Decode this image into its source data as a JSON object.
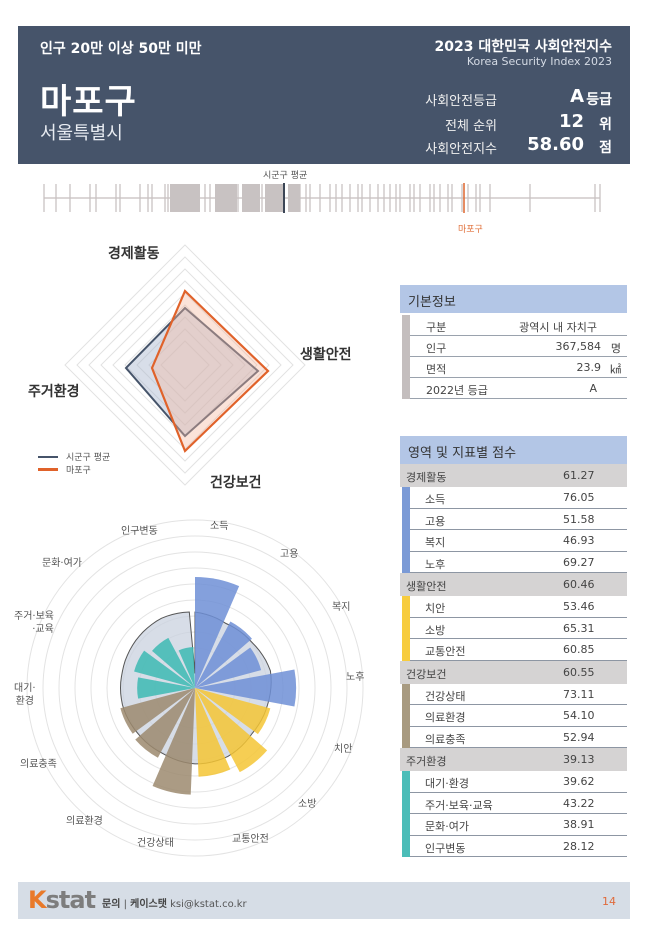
{
  "header": {
    "population_category": "인구 20만 이상 50만 미만",
    "district": "마포구",
    "city": "서울특별시",
    "report_title": "2023 대한민국 사회안전지수",
    "report_subtitle": "Korea Security Index 2023",
    "grade_label": "사회안전등급",
    "grade_value": "A",
    "grade_unit": "등급",
    "rank_label": "전체 순위",
    "rank_value": "12",
    "rank_unit": "위",
    "index_label": "사회안전지수",
    "index_value": "58.60",
    "index_unit": "점"
  },
  "strip": {
    "average_label": "시군구 평균",
    "district_label": "마포구",
    "colors": {
      "ticks": "#c8c2c2",
      "average": "#3c4656",
      "district": "#e0703a"
    }
  },
  "radar": {
    "axes": [
      "경제활동",
      "생활안전",
      "건강보건",
      "주거환경"
    ],
    "legend": [
      {
        "label": "시군구 평균",
        "color": "#46546a"
      },
      {
        "label": "마포구",
        "color": "#e0622a"
      }
    ]
  },
  "basic_info": {
    "title": "기본정보",
    "rows": [
      {
        "key": "구분",
        "value": "광역시 내 자치구",
        "unit": ""
      },
      {
        "key": "인구",
        "value": "367,584",
        "unit": "명"
      },
      {
        "key": "면적",
        "value": "23.9",
        "unit": "㎢"
      },
      {
        "key": "2022년 등급",
        "value": "A",
        "unit": ""
      }
    ]
  },
  "scores": {
    "title": "영역 및 지표별 점수",
    "groups": [
      {
        "name": "경제활동",
        "score": "61.27",
        "color": "#7b9ad6",
        "items": [
          {
            "name": "소득",
            "score": "76.05"
          },
          {
            "name": "고용",
            "score": "51.58"
          },
          {
            "name": "복지",
            "score": "46.93"
          },
          {
            "name": "노후",
            "score": "69.27"
          }
        ]
      },
      {
        "name": "생활안전",
        "score": "60.46",
        "color": "#f7cc3e",
        "items": [
          {
            "name": "치안",
            "score": "53.46"
          },
          {
            "name": "소방",
            "score": "65.31"
          },
          {
            "name": "교통안전",
            "score": "60.85"
          }
        ]
      },
      {
        "name": "건강보건",
        "score": "60.55",
        "color": "#a89a80",
        "items": [
          {
            "name": "건강상태",
            "score": "73.11"
          },
          {
            "name": "의료환경",
            "score": "54.10"
          },
          {
            "name": "의료충족",
            "score": "52.94"
          }
        ]
      },
      {
        "name": "주거환경",
        "score": "39.13",
        "color": "#4bbdb8",
        "items": [
          {
            "name": "대기·환경",
            "score": "39.62"
          },
          {
            "name": "주거·보육·교육",
            "score": "43.22"
          },
          {
            "name": "문화·여가",
            "score": "38.91"
          },
          {
            "name": "인구변동",
            "score": "28.12"
          }
        ]
      }
    ]
  },
  "polar_labels": {
    "소득": "소득",
    "고용": "고용",
    "복지": "복지",
    "노후": "노후",
    "치안": "치안",
    "소방": "소방",
    "교통안전": "교통안전",
    "건강상태": "건강상태",
    "의료환경": "의료환경",
    "의료충족": "의료충족",
    "대기환경_1": "대기·",
    "대기환경_2": "환경",
    "주거_1": "주거·보육",
    "주거_2": "·교육",
    "문화여가": "문화·여가",
    "인구변동": "인구변동"
  },
  "chart_data": [
    {
      "type": "radar",
      "title": "영역별 점수",
      "categories": [
        "경제활동",
        "생활안전",
        "건강보건",
        "주거환경"
      ],
      "series": [
        {
          "name": "시군구 평균",
          "values": [
            46,
            58,
            51,
            45
          ]
        },
        {
          "name": "마포구",
          "values": [
            61.27,
            60.46,
            60.55,
            39.13
          ]
        }
      ],
      "legend_position": "bottom-left"
    },
    {
      "type": "polar-bar",
      "title": "지표별 점수",
      "categories": [
        "소득",
        "고용",
        "복지",
        "노후",
        "치안",
        "소방",
        "교통안전",
        "건강상태",
        "의료환경",
        "의료충족",
        "대기·환경",
        "주거·보육·교육",
        "문화·여가",
        "인구변동"
      ],
      "series": [
        {
          "name": "마포구",
          "values": [
            76.05,
            51.58,
            46.93,
            69.27,
            53.46,
            65.31,
            60.85,
            73.11,
            54.1,
            52.94,
            39.62,
            43.22,
            38.91,
            28.12
          ]
        }
      ],
      "reference": {
        "name": "시군구 평균",
        "approx_values": [
          52,
          49,
          50,
          53,
          51,
          50,
          52,
          52,
          50,
          50,
          51,
          51,
          52,
          53
        ]
      },
      "group_colors": {
        "경제활동": "#6f8fd6",
        "생활안전": "#f5c535",
        "건강보건": "#9c8a6e",
        "주거환경": "#3dbab3"
      }
    },
    {
      "type": "strip",
      "title": "시군구별 사회안전지수 분포",
      "markers": [
        {
          "name": "시군구 평균"
        },
        {
          "name": "마포구",
          "value": 58.6
        }
      ]
    }
  ],
  "footer": {
    "logo_k": "K",
    "logo_rest": "stat",
    "contact_label": "문의",
    "contact_org": "케이스탯",
    "contact_email": "ksi@kstat.co.kr",
    "page_number": "14"
  }
}
